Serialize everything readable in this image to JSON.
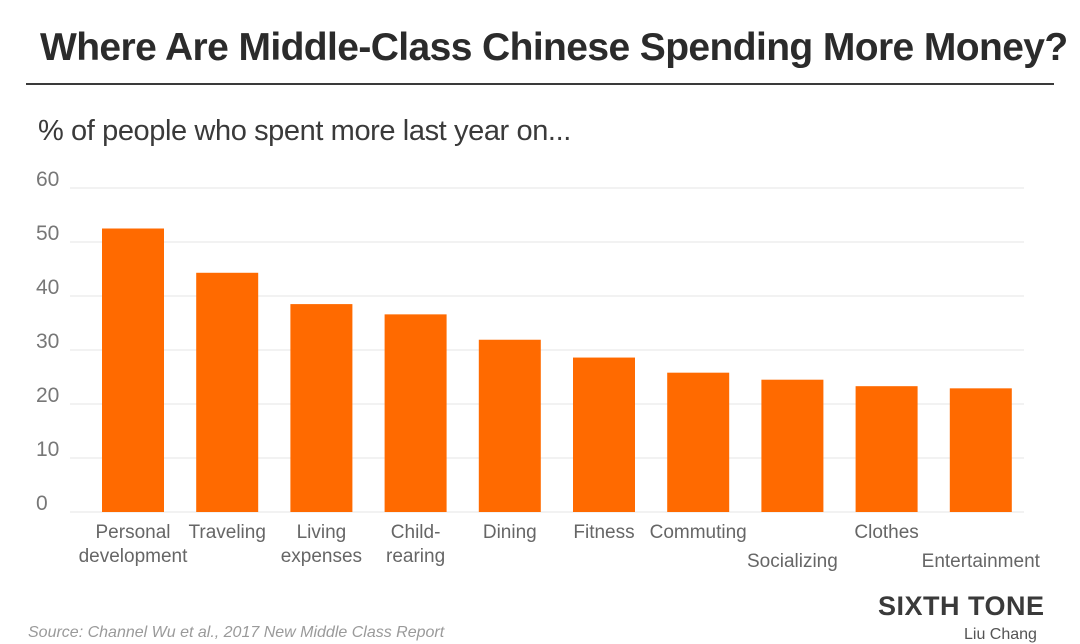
{
  "title": "Where Are Middle-Class Chinese Spending More Money?",
  "subtitle": "% of people who spent more last year on...",
  "brand": "SIXTH TONE",
  "author": "Liu Chang",
  "source": "Source: Channel Wu et al., 2017 New Middle Class Report",
  "colors": {
    "bar": "#ff6a00",
    "grid": "#e6e6e6",
    "tick": "#777777",
    "label": "#666666"
  },
  "chart_data": {
    "type": "bar",
    "categories": [
      [
        "Personal",
        "development"
      ],
      [
        "Traveling"
      ],
      [
        "Living",
        "expenses"
      ],
      [
        "Child-",
        "rearing"
      ],
      [
        "Dining"
      ],
      [
        "Fitness"
      ],
      [
        "Commuting"
      ],
      [
        "Socializing"
      ],
      [
        "Clothes"
      ],
      [
        "Entertainment"
      ]
    ],
    "values": [
      52.5,
      44.3,
      38.5,
      36.6,
      31.9,
      28.6,
      25.8,
      24.5,
      23.3,
      22.9
    ],
    "ylim": [
      0,
      60
    ],
    "yticks": [
      0,
      10,
      20,
      30,
      40,
      50,
      60
    ],
    "grid": true
  }
}
